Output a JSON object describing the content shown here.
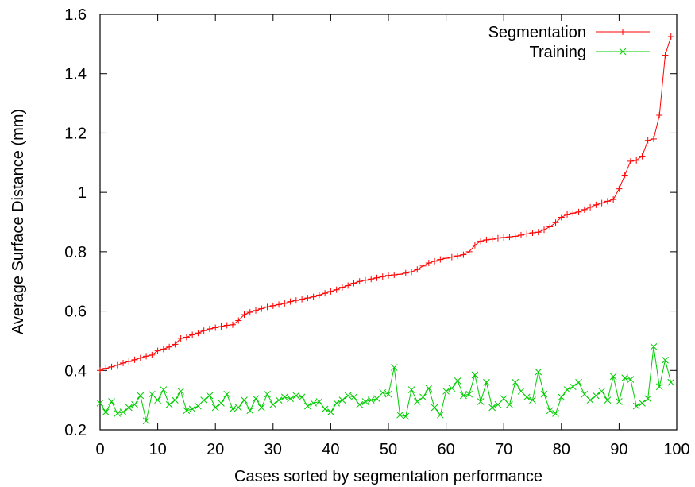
{
  "chart_data": {
    "type": "line",
    "title": "",
    "xlabel": "Cases sorted by segmentation performance",
    "ylabel": "Average Surface Distance (mm)",
    "xlim": [
      0,
      100
    ],
    "ylim": [
      0.2,
      1.6
    ],
    "x_ticks": [
      0,
      10,
      20,
      30,
      40,
      50,
      60,
      70,
      80,
      90,
      100
    ],
    "y_ticks": [
      0.2,
      0.4,
      0.6,
      0.8,
      1.0,
      1.2,
      1.4,
      1.6
    ],
    "x_tick_labels": [
      "0",
      "10",
      "20",
      "30",
      "40",
      "50",
      "60",
      "70",
      "80",
      "90",
      "100"
    ],
    "y_tick_labels": [
      "0.2",
      "0.4",
      "0.6",
      "0.8",
      "1",
      "1.2",
      "1.4",
      "1.6"
    ],
    "grid": false,
    "legend_position": "top-right",
    "x": [
      0,
      1,
      2,
      3,
      4,
      5,
      6,
      7,
      8,
      9,
      10,
      11,
      12,
      13,
      14,
      15,
      16,
      17,
      18,
      19,
      20,
      21,
      22,
      23,
      24,
      25,
      26,
      27,
      28,
      29,
      30,
      31,
      32,
      33,
      34,
      35,
      36,
      37,
      38,
      39,
      40,
      41,
      42,
      43,
      44,
      45,
      46,
      47,
      48,
      49,
      50,
      51,
      52,
      53,
      54,
      55,
      56,
      57,
      58,
      59,
      60,
      61,
      62,
      63,
      64,
      65,
      66,
      67,
      68,
      69,
      70,
      71,
      72,
      73,
      74,
      75,
      76,
      77,
      78,
      79,
      80,
      81,
      82,
      83,
      84,
      85,
      86,
      87,
      88,
      89,
      90,
      91,
      92,
      93,
      94,
      95,
      96,
      97,
      98,
      99
    ],
    "series": [
      {
        "name": "Segmentation",
        "color": "#ff0000",
        "marker": "plus",
        "values": [
          0.4,
          0.407,
          0.412,
          0.418,
          0.425,
          0.43,
          0.436,
          0.442,
          0.448,
          0.452,
          0.466,
          0.472,
          0.479,
          0.488,
          0.508,
          0.512,
          0.52,
          0.526,
          0.534,
          0.54,
          0.544,
          0.548,
          0.552,
          0.554,
          0.568,
          0.588,
          0.596,
          0.602,
          0.608,
          0.614,
          0.618,
          0.622,
          0.626,
          0.632,
          0.636,
          0.64,
          0.644,
          0.648,
          0.654,
          0.66,
          0.666,
          0.672,
          0.68,
          0.686,
          0.694,
          0.7,
          0.704,
          0.708,
          0.712,
          0.716,
          0.72,
          0.722,
          0.724,
          0.728,
          0.732,
          0.74,
          0.752,
          0.762,
          0.768,
          0.774,
          0.778,
          0.782,
          0.786,
          0.79,
          0.8,
          0.822,
          0.836,
          0.84,
          0.842,
          0.846,
          0.848,
          0.85,
          0.852,
          0.856,
          0.86,
          0.864,
          0.866,
          0.874,
          0.884,
          0.898,
          0.916,
          0.926,
          0.93,
          0.934,
          0.942,
          0.95,
          0.958,
          0.964,
          0.97,
          0.976,
          1.012,
          1.058,
          1.105,
          1.108,
          1.122,
          1.175,
          1.18,
          1.26,
          1.462,
          1.525
        ]
      },
      {
        "name": "Training",
        "color": "#00cc00",
        "marker": "x",
        "values": [
          0.29,
          0.26,
          0.295,
          0.255,
          0.26,
          0.275,
          0.285,
          0.315,
          0.23,
          0.32,
          0.3,
          0.335,
          0.285,
          0.3,
          0.33,
          0.265,
          0.27,
          0.28,
          0.3,
          0.315,
          0.275,
          0.29,
          0.32,
          0.27,
          0.275,
          0.3,
          0.265,
          0.305,
          0.275,
          0.32,
          0.285,
          0.3,
          0.31,
          0.305,
          0.315,
          0.31,
          0.28,
          0.29,
          0.295,
          0.27,
          0.26,
          0.29,
          0.3,
          0.315,
          0.31,
          0.285,
          0.295,
          0.3,
          0.305,
          0.325,
          0.32,
          0.41,
          0.25,
          0.245,
          0.335,
          0.295,
          0.31,
          0.34,
          0.275,
          0.25,
          0.33,
          0.34,
          0.365,
          0.315,
          0.32,
          0.385,
          0.295,
          0.36,
          0.275,
          0.285,
          0.305,
          0.285,
          0.36,
          0.33,
          0.31,
          0.3,
          0.395,
          0.32,
          0.265,
          0.255,
          0.31,
          0.335,
          0.345,
          0.36,
          0.32,
          0.3,
          0.315,
          0.33,
          0.3,
          0.38,
          0.295,
          0.375,
          0.37,
          0.28,
          0.29,
          0.305,
          0.48,
          0.345,
          0.435,
          0.36
        ]
      }
    ]
  }
}
